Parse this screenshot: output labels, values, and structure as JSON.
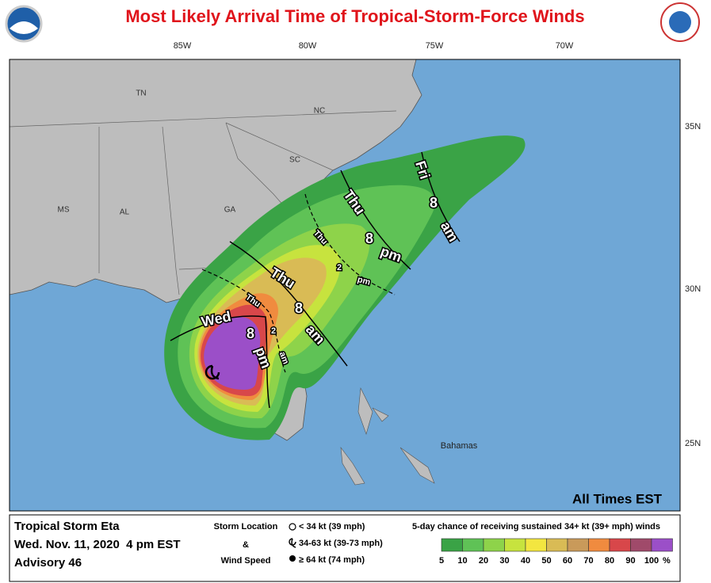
{
  "header": {
    "title": "Most Likely Arrival Time of Tropical-Storm-Force Winds"
  },
  "map": {
    "lon_labels": [
      "85W",
      "80W",
      "75W",
      "70W"
    ],
    "lat_labels": [
      "35N",
      "30N",
      "25N"
    ],
    "state_labels": [
      "TN",
      "NC",
      "SC",
      "MS",
      "AL",
      "GA"
    ],
    "place_labels": [
      "Bahamas"
    ],
    "contour_labels": [
      "Wed",
      "8",
      "pm",
      "Thu",
      "2",
      "am",
      "Thu",
      "8",
      "am",
      "Thu",
      "2",
      "pm",
      "Thu",
      "8",
      "pm",
      "Fri",
      "8",
      "am"
    ],
    "note": "All Times EST"
  },
  "footer": {
    "storm": {
      "name": "Tropical Storm Eta",
      "date": "Wed. Nov. 11, 2020  4 pm EST",
      "advisory": "Advisory 46"
    },
    "key": {
      "title_lines": [
        "Storm Location",
        "&",
        "Wind Speed"
      ],
      "items": [
        "< 34 kt (39 mph)",
        "34-63 kt (39-73 mph)",
        "≥ 64 kt (74 mph)"
      ]
    },
    "probability": {
      "title": "5-day chance of receiving sustained 34+ kt (39+ mph) winds",
      "levels": [
        5,
        10,
        20,
        30,
        40,
        50,
        60,
        70,
        80,
        90,
        100
      ],
      "unit": "%",
      "colors": [
        "#3aa346",
        "#5fc256",
        "#8ed34a",
        "#c7e33e",
        "#f3e640",
        "#d9bb55",
        "#c99a5a",
        "#f08b3f",
        "#d8474a",
        "#a04a6a",
        "#9b4fc8"
      ]
    }
  }
}
